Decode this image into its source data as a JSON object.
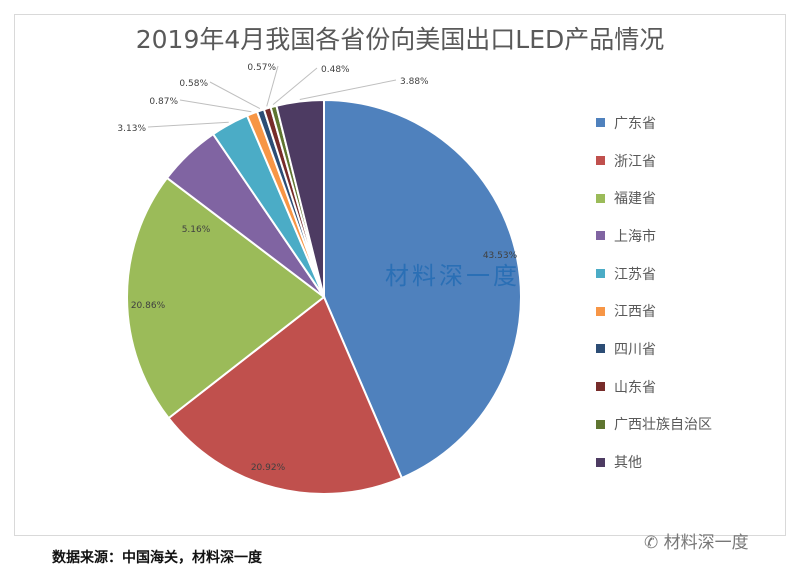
{
  "chart_data": {
    "type": "pie",
    "title": "2019年4月我国各省份向美国出口LED产品情况",
    "categories": [
      "广东省",
      "浙江省",
      "福建省",
      "上海市",
      "江苏省",
      "江西省",
      "四川省",
      "山东省",
      "广西壮族自治区",
      "其他"
    ],
    "values": [
      43.53,
      20.92,
      20.86,
      5.16,
      3.13,
      0.87,
      0.58,
      0.57,
      0.48,
      3.88
    ],
    "data_labels": [
      "43.53%",
      "20.92%",
      "20.86%",
      "5.16%",
      "3.13%",
      "0.87%",
      "0.58%",
      "0.57%",
      "0.48%",
      "3.88%"
    ],
    "colors": [
      "#4F81BD",
      "#C0504D",
      "#9BBB59",
      "#8064A2",
      "#4BACC6",
      "#F79646",
      "#2C4D75",
      "#772C2A",
      "#5F7530",
      "#4D3B62"
    ],
    "legend_position": "right",
    "start": "top, clockwise"
  },
  "footer": {
    "source": "数据来源：中国海关，材料深一度",
    "watermark": "材料深一度"
  },
  "watermark_center": "材料深一度"
}
